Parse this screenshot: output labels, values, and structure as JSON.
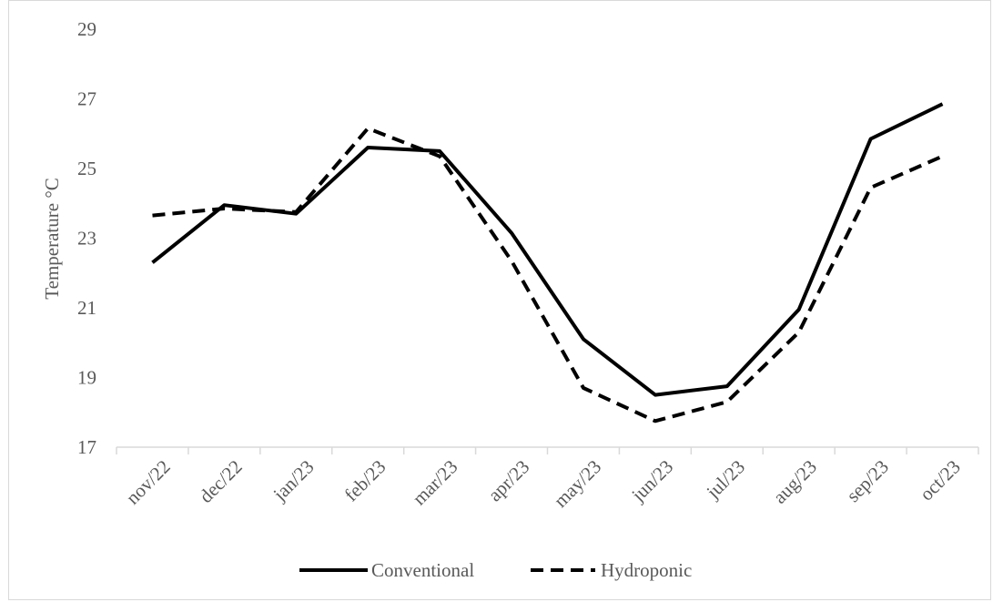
{
  "chart_data": {
    "type": "line",
    "title": "",
    "xlabel": "",
    "ylabel": "Temperature °C",
    "ylim": [
      17,
      29
    ],
    "yticks": [
      17,
      19,
      21,
      23,
      25,
      27,
      29
    ],
    "grid": false,
    "legend_position": "bottom",
    "categories": [
      "nov/22",
      "dec/22",
      "jan/23",
      "feb/23",
      "mar/23",
      "apr/23",
      "may/23",
      "jun/23",
      "jul/23",
      "aug/23",
      "sep/23",
      "oct/23"
    ],
    "series": [
      {
        "name": "Conventional",
        "style": "solid",
        "color": "#000000",
        "values": [
          22.3,
          23.95,
          23.7,
          25.6,
          25.5,
          23.15,
          20.1,
          18.5,
          18.75,
          20.95,
          25.85,
          26.85
        ]
      },
      {
        "name": "Hydroponic",
        "style": "dashed",
        "color": "#000000",
        "values": [
          23.65,
          23.85,
          23.75,
          26.15,
          25.35,
          22.35,
          18.7,
          17.75,
          18.3,
          20.3,
          24.45,
          25.35
        ]
      }
    ]
  }
}
